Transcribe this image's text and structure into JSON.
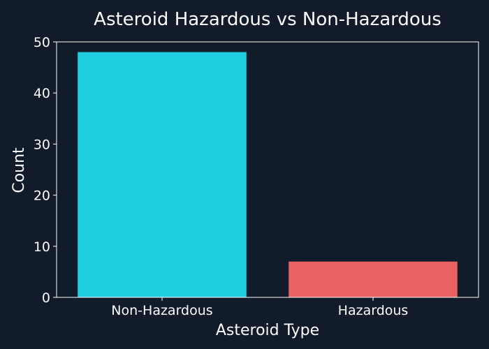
{
  "chart_data": {
    "type": "bar",
    "title": "Asteroid Hazardous vs Non-Hazardous",
    "xlabel": "Asteroid Type",
    "ylabel": "Count",
    "categories": [
      "Non-Hazardous",
      "Hazardous"
    ],
    "values": [
      48,
      7
    ],
    "colors": [
      "#1ecde0",
      "#ea6262"
    ],
    "ylim": [
      0,
      50
    ],
    "yticks": [
      0,
      10,
      20,
      30,
      40,
      50
    ],
    "grid": false,
    "background": "#111b2a",
    "text_color": "#ffffff"
  }
}
